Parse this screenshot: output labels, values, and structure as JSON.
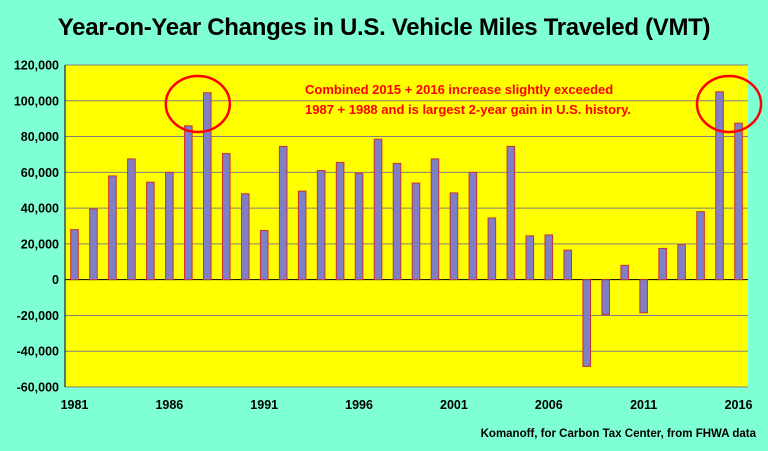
{
  "chart_data": {
    "type": "bar",
    "title": "Year-on-Year Changes in U.S. Vehicle Miles Traveled (VMT)",
    "x": [
      1981,
      1982,
      1983,
      1984,
      1985,
      1986,
      1987,
      1988,
      1989,
      1990,
      1991,
      1992,
      1993,
      1994,
      1995,
      1996,
      1997,
      1998,
      1999,
      2000,
      2001,
      2002,
      2003,
      2004,
      2005,
      2006,
      2007,
      2008,
      2009,
      2010,
      2011,
      2012,
      2013,
      2014,
      2015,
      2016
    ],
    "values": [
      28000,
      39500,
      58000,
      67500,
      54500,
      60000,
      86000,
      104500,
      70500,
      48000,
      27500,
      74500,
      49500,
      61000,
      65500,
      59500,
      78500,
      65000,
      54000,
      67500,
      48500,
      60000,
      34500,
      74500,
      24500,
      25000,
      16500,
      -48500,
      -19500,
      8000,
      -18500,
      17500,
      19500,
      38000,
      105000,
      87500
    ],
    "x_tick_labels": [
      "1981",
      "1986",
      "1991",
      "1996",
      "2001",
      "2006",
      "2011",
      "2016"
    ],
    "y_tick_labels": [
      "120,000",
      "100,000",
      "80,000",
      "60,000",
      "40,000",
      "20,000",
      "0",
      "-20,000",
      "-40,000",
      "-60,000"
    ],
    "ylim": [
      -60000,
      120000
    ],
    "xlabel": "",
    "ylabel": "",
    "grid": true,
    "colors": {
      "background": "#7fffd4",
      "plot_area": "#ffff00",
      "bar_fill": "#7f7fc8",
      "bar_edge": "#c83232",
      "annotation": "#ff0000",
      "grid": "#808080"
    },
    "annotation_lines": [
      "Combined 2015 + 2016 increase slightly exceeded",
      "1987 + 1988 and is largest 2-year gain in U.S. history."
    ],
    "highlighted_years": [
      [
        1987,
        1988
      ],
      [
        2015,
        2016
      ]
    ]
  },
  "source_note": "Komanoff, for Carbon Tax Center, from FHWA data"
}
